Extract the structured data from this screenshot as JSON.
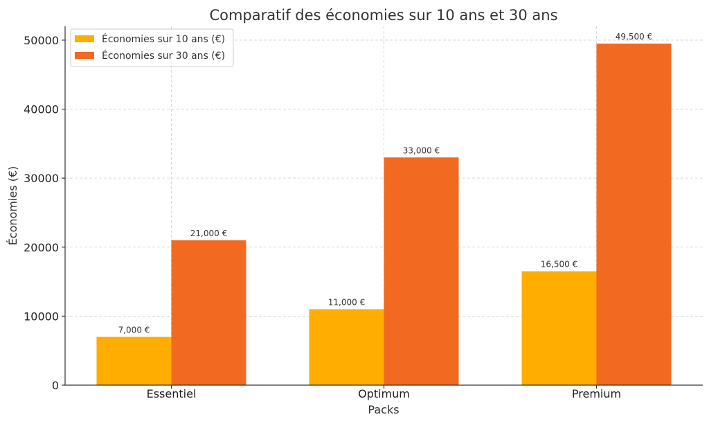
{
  "chart_data": {
    "type": "bar",
    "title": "Comparatif des économies sur 10 ans et 30 ans",
    "xlabel": "Packs",
    "ylabel": "Économies (€)",
    "categories": [
      "Essentiel",
      "Optimum",
      "Premium"
    ],
    "series": [
      {
        "name": "Économies sur 10 ans (€)",
        "color": "#FFAD00",
        "values": [
          7000,
          11000,
          16500
        ],
        "labels": [
          "7,000 €",
          "11,000 €",
          "16,500 €"
        ]
      },
      {
        "name": "Économies sur 30 ans (€)",
        "color": "#F26922",
        "values": [
          21000,
          33000,
          49500
        ],
        "labels": [
          "21,000 €",
          "33,000 €",
          "49,500 €"
        ]
      }
    ],
    "ylim": [
      0,
      52000
    ],
    "yticks": [
      0,
      10000,
      20000,
      30000,
      40000,
      50000
    ],
    "ytick_labels": [
      "0",
      "10000",
      "20000",
      "30000",
      "40000",
      "50000"
    ],
    "grid": true,
    "legend_position": "top-left"
  }
}
